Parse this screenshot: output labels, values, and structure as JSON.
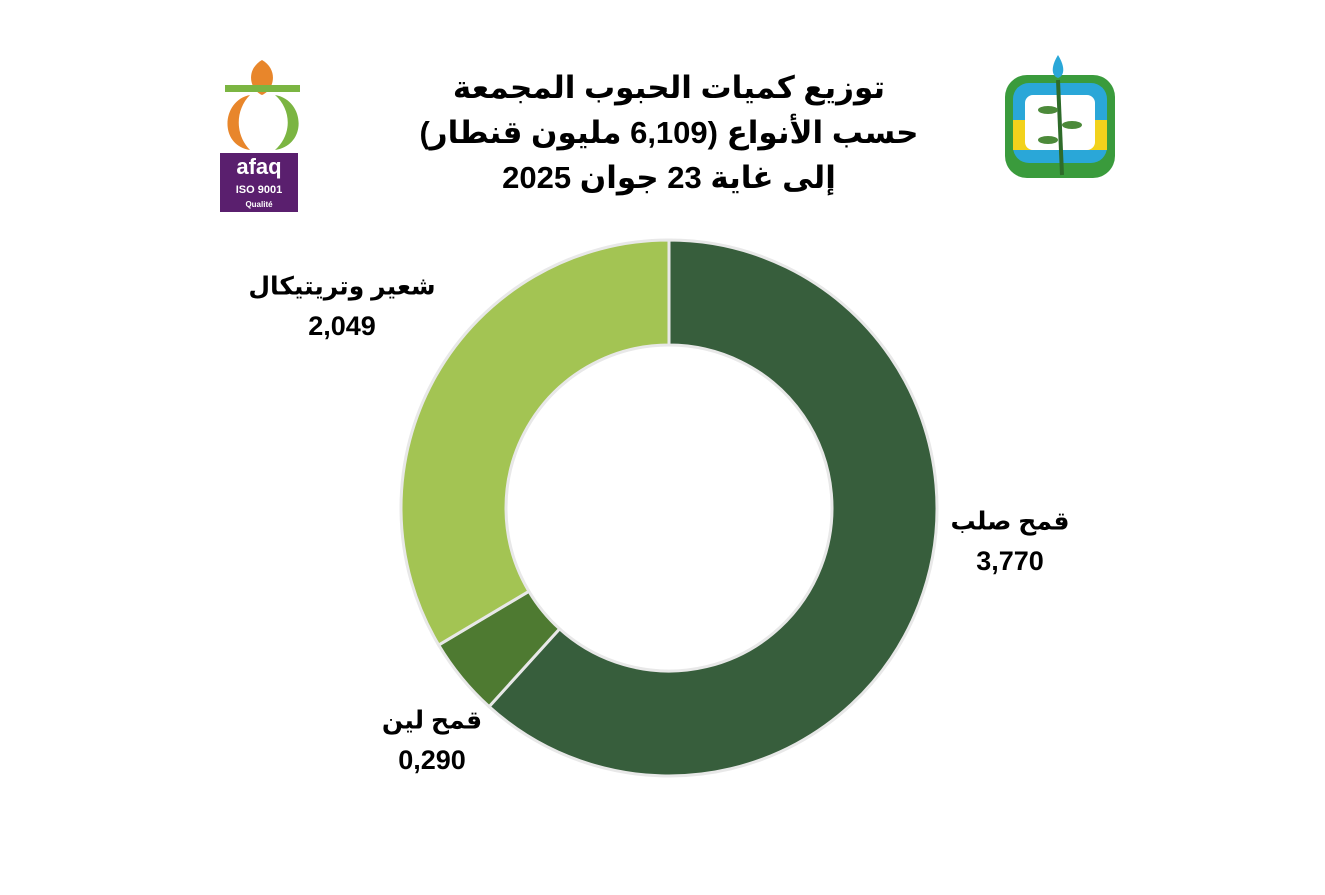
{
  "logo": {
    "brand": "afaq",
    "standard": "ISO 9001",
    "note": "Qualité"
  },
  "chart_data": {
    "type": "donut",
    "title": [
      "توزيع كميات الحبوب المجمعة",
      "حسب الأنواع  (6,109 مليون قنطار)",
      "إلى غاية 23 جوان 2025"
    ],
    "categories": [
      "قمح صلب",
      "قمح لين",
      "شعير وتريتيكال"
    ],
    "values": [
      3.77,
      0.29,
      2.049
    ],
    "value_labels": [
      "3,770",
      "0,290",
      "2,049"
    ],
    "colors": [
      "#375e3c",
      "#4e7a31",
      "#a3c453"
    ]
  }
}
